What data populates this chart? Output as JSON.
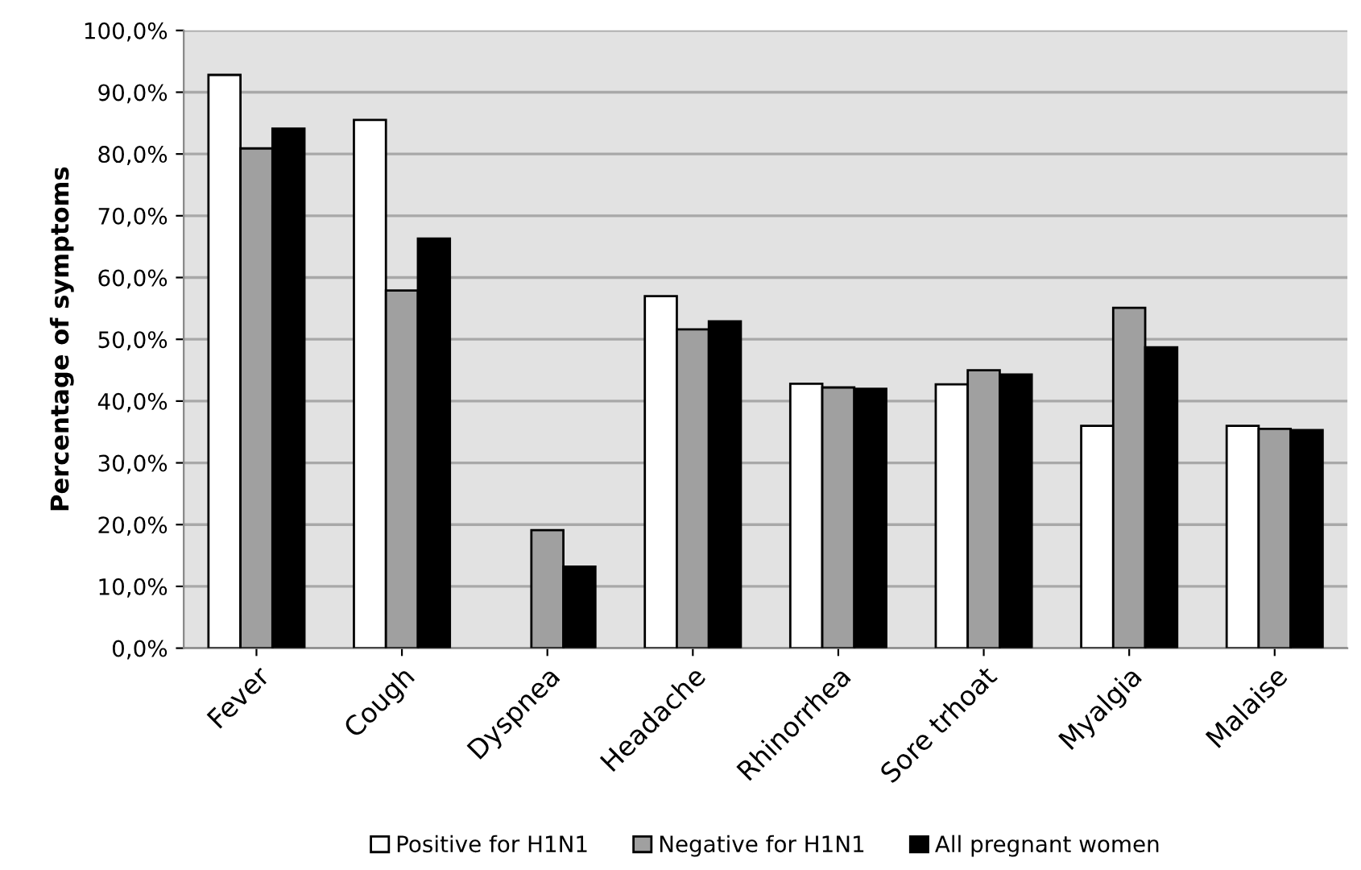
{
  "chart_data": {
    "type": "bar",
    "ylabel": "Percentage of symptoms",
    "categories": [
      "Fever",
      "Cough",
      "Dyspnea",
      "Headache",
      "Rhinorrhea",
      "Sore trhoat",
      "Myalgia",
      "Malaise"
    ],
    "series": [
      {
        "name": "Positive for H1N1",
        "color": "#ffffff",
        "values": [
          92.8,
          85.5,
          null,
          57.0,
          42.8,
          42.7,
          36.0,
          36.0
        ]
      },
      {
        "name": "Negative for H1N1",
        "color": "#a0a0a0",
        "values": [
          80.9,
          57.9,
          19.1,
          51.6,
          42.2,
          45.0,
          55.1,
          35.5
        ]
      },
      {
        "name": "All pregnant women",
        "color": "#000000",
        "values": [
          84.1,
          66.3,
          13.2,
          52.9,
          42.0,
          44.3,
          48.7,
          35.3
        ]
      }
    ],
    "ylim": [
      0,
      100
    ],
    "yticks": [
      {
        "value": 0,
        "label": "0,0%"
      },
      {
        "value": 10,
        "label": "10,0%"
      },
      {
        "value": 20,
        "label": "20,0%"
      },
      {
        "value": 30,
        "label": "30,0%"
      },
      {
        "value": 40,
        "label": "40,0%"
      },
      {
        "value": 50,
        "label": "50,0%"
      },
      {
        "value": 60,
        "label": "60,0%"
      },
      {
        "value": 70,
        "label": "70,0%"
      },
      {
        "value": 80,
        "label": "80,0%"
      },
      {
        "value": 90,
        "label": "90,0%"
      },
      {
        "value": 100,
        "label": "100,0%"
      }
    ],
    "grid": "y",
    "legend": "bottom"
  }
}
